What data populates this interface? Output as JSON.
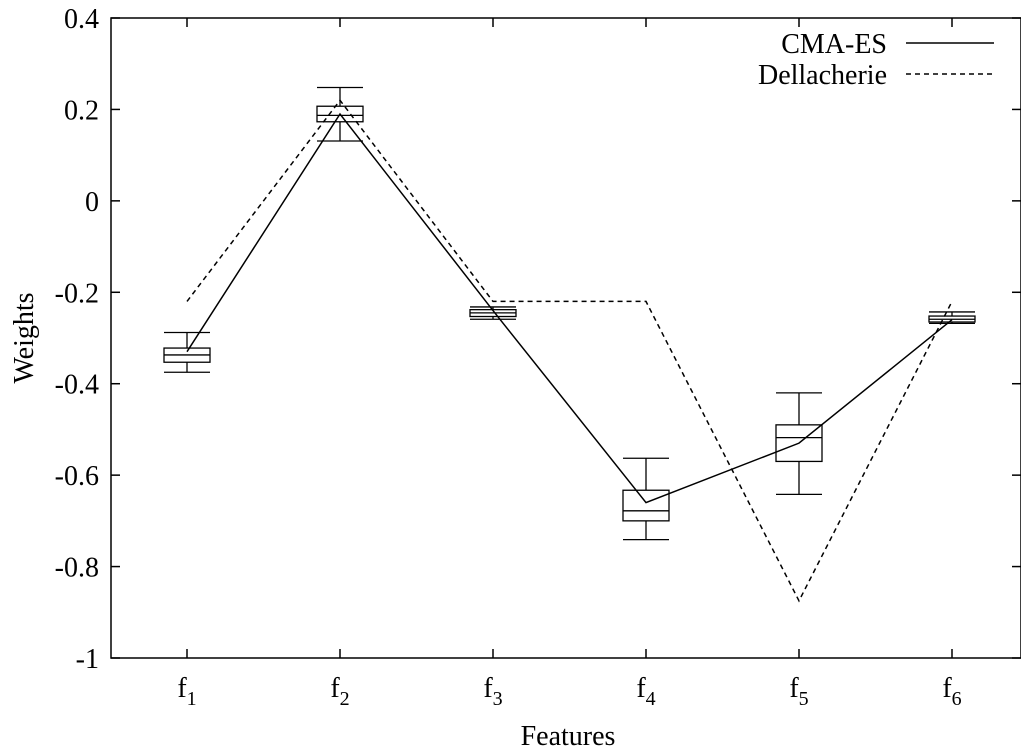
{
  "chart_data": {
    "type": "line",
    "xlabel": "Features",
    "ylabel": "Weights",
    "ylim": [
      -1,
      0.4
    ],
    "yticks": [
      -1,
      -0.8,
      -0.6,
      -0.4,
      -0.2,
      0,
      0.2,
      0.4
    ],
    "ytick_labels": [
      "-1",
      "-0.8",
      "-0.6",
      "-0.4",
      "-0.2",
      "0",
      "0.2",
      "0.4"
    ],
    "categories": [
      {
        "base": "f",
        "sub": "1"
      },
      {
        "base": "f",
        "sub": "2"
      },
      {
        "base": "f",
        "sub": "3"
      },
      {
        "base": "f",
        "sub": "4"
      },
      {
        "base": "f",
        "sub": "5"
      },
      {
        "base": "f",
        "sub": "6"
      }
    ],
    "legend_position": "top-right",
    "series": [
      {
        "name": "CMA-ES",
        "style": "solid",
        "values": [
          -0.33,
          0.19,
          -0.24,
          -0.66,
          -0.53,
          -0.26
        ]
      },
      {
        "name": "Dellacherie",
        "style": "dashed",
        "values": [
          -0.22,
          0.22,
          -0.22,
          -0.22,
          -0.875,
          -0.22
        ]
      }
    ],
    "boxplots": [
      {
        "category": "f1",
        "min": -0.375,
        "q1": -0.353,
        "median": -0.337,
        "q3": -0.322,
        "max": -0.288
      },
      {
        "category": "f2",
        "min": 0.131,
        "q1": 0.173,
        "median": 0.187,
        "q3": 0.207,
        "max": 0.248
      },
      {
        "category": "f3",
        "min": -0.259,
        "q1": -0.253,
        "median": -0.245,
        "q3": -0.238,
        "max": -0.232
      },
      {
        "category": "f4",
        "min": -0.741,
        "q1": -0.7,
        "median": -0.678,
        "q3": -0.633,
        "max": -0.563
      },
      {
        "category": "f5",
        "min": -0.642,
        "q1": -0.57,
        "median": -0.518,
        "q3": -0.49,
        "max": -0.42
      },
      {
        "category": "f6",
        "min": -0.268,
        "q1": -0.265,
        "median": -0.259,
        "q3": -0.252,
        "max": -0.243
      }
    ],
    "grid": false
  }
}
